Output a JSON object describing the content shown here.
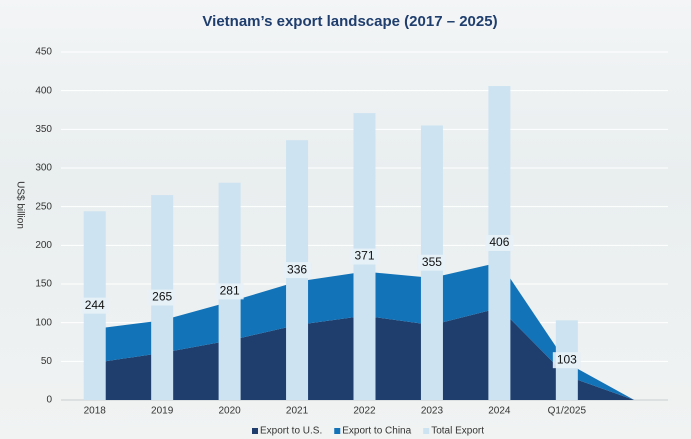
{
  "chart_data": {
    "type": "bar-area",
    "title": "Vietnam’s export landscape (2017 – 2025)",
    "y_label": "US$ billion",
    "categories": [
      "2018",
      "2019",
      "2020",
      "2021",
      "2022",
      "2023",
      "2024",
      "Q1/2025",
      null
    ],
    "series": [
      {
        "name": "Export to U.S.",
        "color": "#1f3e6e",
        "kind": "area",
        "values": [
          48,
          61,
          77,
          97,
          109,
          97,
          119,
          31,
          0
        ]
      },
      {
        "name": "Export to China",
        "color": "#1273b8",
        "kind": "area",
        "values": [
          44,
          42,
          50,
          56,
          57,
          61,
          59,
          17,
          0
        ]
      },
      {
        "name": "Total Export",
        "color": "#cde3f1",
        "kind": "bar",
        "values": [
          244,
          265,
          281,
          336,
          371,
          355,
          406,
          103,
          null
        ]
      }
    ],
    "ylim": [
      0,
      450
    ],
    "yticks": [
      0,
      50,
      100,
      150,
      200,
      250,
      300,
      350,
      400,
      450
    ],
    "grid": true
  }
}
